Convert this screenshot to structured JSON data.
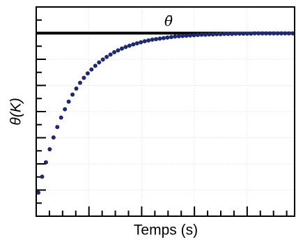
{
  "chart_data": {
    "type": "scatter",
    "xlabel": "Temps (s)",
    "ylabel": "θ(K)",
    "xlim": [
      0,
      4.9
    ],
    "ylim": [
      0,
      8
    ],
    "xticks": [
      0,
      1,
      2,
      3,
      4
    ],
    "xminorticks": [
      0.25,
      0.5,
      0.75,
      1.25,
      1.5,
      1.75,
      2.25,
      2.5,
      2.75,
      3.25,
      3.5,
      3.75,
      4.25,
      4.5,
      4.75
    ],
    "yticks": [
      0,
      1,
      2,
      3,
      4,
      5,
      6,
      7,
      8
    ],
    "yminorticks": [
      0.5,
      1.5,
      2.5,
      3.5,
      4.5,
      5.5,
      6.5,
      7.5
    ],
    "grid": true,
    "reference_line": {
      "value": 7,
      "label": "θ̄",
      "color": "#000000"
    },
    "series": [
      {
        "color": "#1f2a6e",
        "x": [
          0.04,
          0.112,
          0.184,
          0.256,
          0.328,
          0.4,
          0.472,
          0.544,
          0.616,
          0.688,
          0.76,
          0.832,
          0.904,
          0.976,
          1.048,
          1.12,
          1.192,
          1.264,
          1.336,
          1.408,
          1.48,
          1.552,
          1.624,
          1.696,
          1.768,
          1.84,
          1.912,
          1.984,
          2.056,
          2.128,
          2.2,
          2.272,
          2.344,
          2.416,
          2.488,
          2.56,
          2.632,
          2.704,
          2.776,
          2.848,
          2.92,
          2.992,
          3.064,
          3.136,
          3.208,
          3.28,
          3.352,
          3.424,
          3.496,
          3.568,
          3.64,
          3.712,
          3.784,
          3.856,
          3.928,
          4.0,
          4.072,
          4.144,
          4.216,
          4.288,
          4.36,
          4.432,
          4.504,
          4.576,
          4.648,
          4.72,
          4.792,
          4.864
        ],
        "values": [
          0.9,
          1.51,
          2.06,
          2.56,
          3.01,
          3.41,
          3.77,
          4.09,
          4.38,
          4.65,
          4.88,
          5.1,
          5.29,
          5.46,
          5.61,
          5.75,
          5.88,
          5.99,
          6.09,
          6.18,
          6.27,
          6.34,
          6.41,
          6.47,
          6.52,
          6.57,
          6.61,
          6.65,
          6.69,
          6.72,
          6.75,
          6.77,
          6.79,
          6.81,
          6.83,
          6.85,
          6.87,
          6.88,
          6.89,
          6.9,
          6.91,
          6.92,
          6.93,
          6.94,
          6.94,
          6.95,
          6.95,
          6.96,
          6.96,
          6.97,
          6.97,
          6.97,
          6.98,
          6.98,
          6.98,
          6.98,
          6.98,
          6.99,
          6.99,
          6.99,
          6.99,
          6.99,
          6.99,
          6.99,
          6.99,
          6.99,
          6.99,
          6.99
        ]
      }
    ]
  }
}
